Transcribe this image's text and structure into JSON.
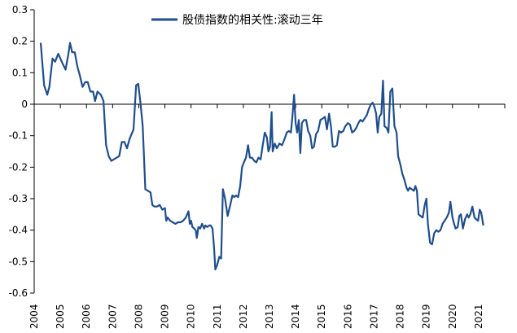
{
  "chart_data": {
    "type": "line",
    "title": "",
    "xlabel": "",
    "ylabel": "",
    "ylim": [
      -0.6,
      0.3
    ],
    "xlim": [
      2004,
      2022
    ],
    "y_ticks": [
      "0.3",
      "0.2",
      "0.1",
      "0",
      "-0.1",
      "-0.2",
      "-0.3",
      "-0.4",
      "-0.5",
      "-0.6"
    ],
    "x_ticks": [
      "2004",
      "2005",
      "2006",
      "2007",
      "2008",
      "2009",
      "2010",
      "2011",
      "2012",
      "2013",
      "2014",
      "2015",
      "2016",
      "2017",
      "2018",
      "2019",
      "2020",
      "2021"
    ],
    "grid": false,
    "legend": "top-center",
    "series": [
      {
        "name": "股债指数的相关性:滚动三年",
        "color": "#1f4e8c",
        "points": [
          [
            2004.25,
            0.195
          ],
          [
            2004.38,
            0.06
          ],
          [
            2004.5,
            0.03
          ],
          [
            2004.58,
            0.055
          ],
          [
            2004.7,
            0.145
          ],
          [
            2004.8,
            0.135
          ],
          [
            2004.92,
            0.16
          ],
          [
            2005.08,
            0.13
          ],
          [
            2005.2,
            0.11
          ],
          [
            2005.3,
            0.155
          ],
          [
            2005.37,
            0.195
          ],
          [
            2005.45,
            0.165
          ],
          [
            2005.55,
            0.165
          ],
          [
            2005.65,
            0.12
          ],
          [
            2005.75,
            0.09
          ],
          [
            2005.85,
            0.055
          ],
          [
            2005.95,
            0.07
          ],
          [
            2006.05,
            0.07
          ],
          [
            2006.15,
            0.04
          ],
          [
            2006.25,
            0.04
          ],
          [
            2006.33,
            0.01
          ],
          [
            2006.42,
            0.04
          ],
          [
            2006.55,
            0.03
          ],
          [
            2006.65,
            0.01
          ],
          [
            2006.75,
            -0.13
          ],
          [
            2006.85,
            -0.165
          ],
          [
            2006.95,
            -0.18
          ],
          [
            2007.05,
            -0.175
          ],
          [
            2007.15,
            -0.17
          ],
          [
            2007.25,
            -0.165
          ],
          [
            2007.35,
            -0.12
          ],
          [
            2007.45,
            -0.12
          ],
          [
            2007.55,
            -0.14
          ],
          [
            2007.65,
            -0.11
          ],
          [
            2007.8,
            -0.08
          ],
          [
            2007.9,
            0.06
          ],
          [
            2007.98,
            0.065
          ],
          [
            2008.07,
            0.0
          ],
          [
            2008.15,
            -0.07
          ],
          [
            2008.25,
            -0.27
          ],
          [
            2008.35,
            -0.275
          ],
          [
            2008.45,
            -0.28
          ],
          [
            2008.52,
            -0.32
          ],
          [
            2008.6,
            -0.325
          ],
          [
            2008.7,
            -0.325
          ],
          [
            2008.8,
            -0.32
          ],
          [
            2008.9,
            -0.335
          ],
          [
            2009.0,
            -0.33
          ],
          [
            2009.05,
            -0.37
          ],
          [
            2009.1,
            -0.36
          ],
          [
            2009.2,
            -0.37
          ],
          [
            2009.3,
            -0.375
          ],
          [
            2009.4,
            -0.38
          ],
          [
            2009.5,
            -0.375
          ],
          [
            2009.6,
            -0.375
          ],
          [
            2009.7,
            -0.37
          ],
          [
            2009.8,
            -0.36
          ],
          [
            2009.9,
            -0.34
          ],
          [
            2009.95,
            -0.38
          ],
          [
            2010.0,
            -0.37
          ],
          [
            2010.05,
            -0.39
          ],
          [
            2010.12,
            -0.395
          ],
          [
            2010.18,
            -0.4
          ],
          [
            2010.22,
            -0.425
          ],
          [
            2010.28,
            -0.39
          ],
          [
            2010.35,
            -0.395
          ],
          [
            2010.42,
            -0.38
          ],
          [
            2010.5,
            -0.395
          ],
          [
            2010.55,
            -0.385
          ],
          [
            2010.62,
            -0.39
          ],
          [
            2010.7,
            -0.385
          ],
          [
            2010.75,
            -0.385
          ],
          [
            2010.82,
            -0.395
          ],
          [
            2010.88,
            -0.455
          ],
          [
            2010.93,
            -0.525
          ],
          [
            2011.0,
            -0.51
          ],
          [
            2011.08,
            -0.485
          ],
          [
            2011.15,
            -0.49
          ],
          [
            2011.22,
            -0.27
          ],
          [
            2011.3,
            -0.3
          ],
          [
            2011.4,
            -0.355
          ],
          [
            2011.5,
            -0.32
          ],
          [
            2011.58,
            -0.29
          ],
          [
            2011.65,
            -0.295
          ],
          [
            2011.72,
            -0.29
          ],
          [
            2011.8,
            -0.295
          ],
          [
            2011.88,
            -0.26
          ],
          [
            2011.95,
            -0.2
          ],
          [
            2012.02,
            -0.185
          ],
          [
            2012.1,
            -0.17
          ],
          [
            2012.18,
            -0.13
          ],
          [
            2012.25,
            -0.17
          ],
          [
            2012.33,
            -0.17
          ],
          [
            2012.42,
            -0.18
          ],
          [
            2012.5,
            -0.185
          ],
          [
            2012.58,
            -0.17
          ],
          [
            2012.66,
            -0.175
          ],
          [
            2012.74,
            -0.13
          ],
          [
            2012.82,
            -0.09
          ],
          [
            2012.9,
            -0.105
          ],
          [
            2012.96,
            -0.15
          ],
          [
            2013.02,
            -0.135
          ],
          [
            2013.08,
            -0.025
          ],
          [
            2013.12,
            -0.15
          ],
          [
            2013.2,
            -0.125
          ],
          [
            2013.28,
            -0.14
          ],
          [
            2013.38,
            -0.125
          ],
          [
            2013.48,
            -0.13
          ],
          [
            2013.58,
            -0.11
          ],
          [
            2013.66,
            -0.09
          ],
          [
            2013.74,
            -0.085
          ],
          [
            2013.82,
            -0.09
          ],
          [
            2013.88,
            -0.035
          ],
          [
            2013.94,
            0.03
          ],
          [
            2014.0,
            -0.06
          ],
          [
            2014.06,
            -0.09
          ],
          [
            2014.12,
            -0.05
          ],
          [
            2014.18,
            -0.155
          ],
          [
            2014.24,
            -0.06
          ],
          [
            2014.32,
            -0.05
          ],
          [
            2014.4,
            -0.05
          ],
          [
            2014.48,
            -0.085
          ],
          [
            2014.56,
            -0.1
          ],
          [
            2014.63,
            -0.14
          ],
          [
            2014.7,
            -0.135
          ],
          [
            2014.78,
            -0.095
          ],
          [
            2014.86,
            -0.085
          ],
          [
            2014.95,
            -0.05
          ],
          [
            2015.04,
            -0.045
          ],
          [
            2015.12,
            -0.04
          ],
          [
            2015.2,
            -0.08
          ],
          [
            2015.28,
            -0.03
          ],
          [
            2015.35,
            -0.07
          ],
          [
            2015.42,
            -0.135
          ],
          [
            2015.5,
            -0.135
          ],
          [
            2015.58,
            -0.13
          ],
          [
            2015.66,
            -0.085
          ],
          [
            2015.74,
            -0.09
          ],
          [
            2015.82,
            -0.085
          ],
          [
            2015.9,
            -0.07
          ],
          [
            2016.0,
            -0.06
          ],
          [
            2016.08,
            -0.065
          ],
          [
            2016.16,
            -0.09
          ],
          [
            2016.24,
            -0.085
          ],
          [
            2016.32,
            -0.075
          ],
          [
            2016.4,
            -0.06
          ],
          [
            2016.48,
            -0.05
          ],
          [
            2016.56,
            -0.055
          ],
          [
            2016.64,
            -0.045
          ],
          [
            2016.72,
            -0.035
          ],
          [
            2016.8,
            -0.015
          ],
          [
            2016.88,
            0.0
          ],
          [
            2016.95,
            0.005
          ],
          [
            2017.02,
            -0.01
          ],
          [
            2017.08,
            -0.03
          ],
          [
            2017.14,
            -0.09
          ],
          [
            2017.2,
            -0.04
          ],
          [
            2017.28,
            -0.03
          ],
          [
            2017.34,
            0.075
          ],
          [
            2017.4,
            -0.07
          ],
          [
            2017.48,
            -0.075
          ],
          [
            2017.55,
            -0.09
          ],
          [
            2017.62,
            0.04
          ],
          [
            2017.7,
            0.05
          ],
          [
            2017.78,
            -0.07
          ],
          [
            2017.86,
            -0.09
          ],
          [
            2017.92,
            -0.165
          ],
          [
            2018.0,
            -0.19
          ],
          [
            2018.08,
            -0.22
          ],
          [
            2018.16,
            -0.24
          ],
          [
            2018.24,
            -0.265
          ],
          [
            2018.3,
            -0.275
          ],
          [
            2018.36,
            -0.265
          ],
          [
            2018.44,
            -0.27
          ],
          [
            2018.52,
            -0.275
          ],
          [
            2018.58,
            -0.26
          ],
          [
            2018.64,
            -0.275
          ],
          [
            2018.7,
            -0.35
          ],
          [
            2018.78,
            -0.355
          ],
          [
            2018.86,
            -0.36
          ],
          [
            2018.94,
            -0.32
          ],
          [
            2019.0,
            -0.3
          ],
          [
            2019.06,
            -0.38
          ],
          [
            2019.14,
            -0.44
          ],
          [
            2019.22,
            -0.445
          ],
          [
            2019.3,
            -0.41
          ],
          [
            2019.38,
            -0.4
          ],
          [
            2019.46,
            -0.405
          ],
          [
            2019.54,
            -0.4
          ],
          [
            2019.62,
            -0.38
          ],
          [
            2019.7,
            -0.37
          ],
          [
            2019.78,
            -0.36
          ],
          [
            2019.86,
            -0.345
          ],
          [
            2019.92,
            -0.31
          ],
          [
            2020.0,
            -0.36
          ],
          [
            2020.06,
            -0.38
          ],
          [
            2020.12,
            -0.395
          ],
          [
            2020.2,
            -0.39
          ],
          [
            2020.26,
            -0.355
          ],
          [
            2020.32,
            -0.35
          ],
          [
            2020.4,
            -0.395
          ],
          [
            2020.48,
            -0.365
          ],
          [
            2020.56,
            -0.35
          ],
          [
            2020.62,
            -0.36
          ],
          [
            2020.68,
            -0.35
          ],
          [
            2020.76,
            -0.325
          ],
          [
            2020.84,
            -0.36
          ],
          [
            2020.9,
            -0.365
          ],
          [
            2020.98,
            -0.37
          ],
          [
            2021.04,
            -0.335
          ],
          [
            2021.1,
            -0.345
          ],
          [
            2021.18,
            -0.385
          ]
        ]
      }
    ]
  }
}
